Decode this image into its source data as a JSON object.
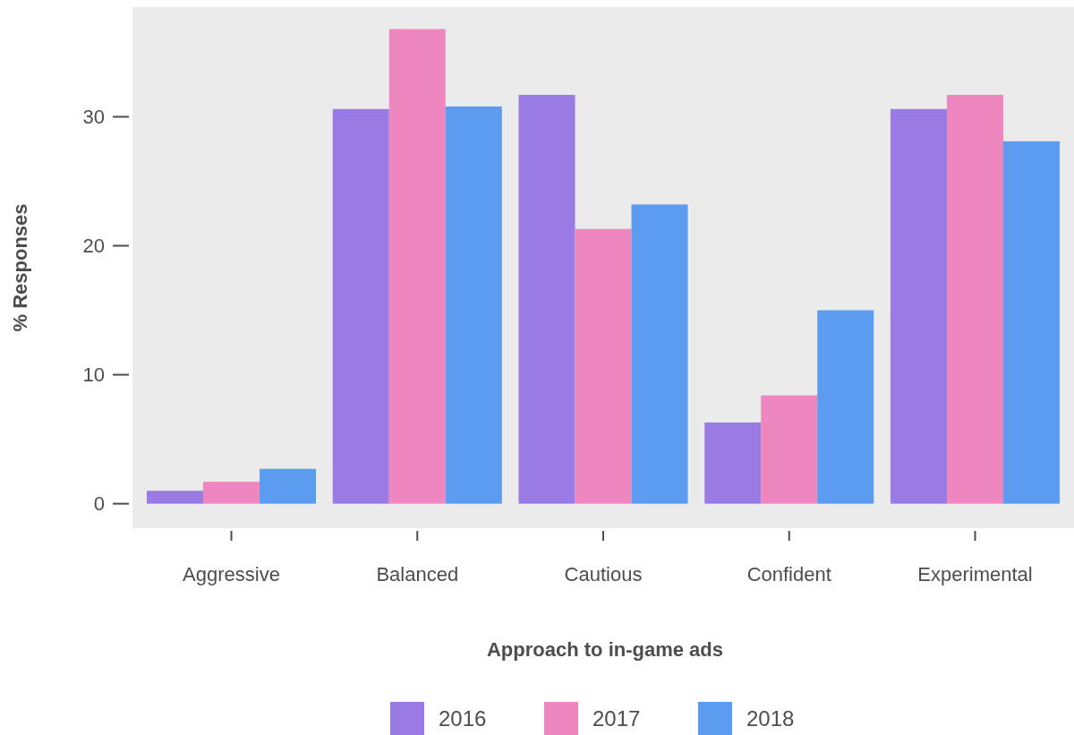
{
  "chart_data": {
    "type": "bar",
    "xlabel": "Approach to in-game ads",
    "ylabel": "% Responses",
    "categories": [
      "Aggressive",
      "Balanced",
      "Cautious",
      "Confident",
      "Experimental"
    ],
    "series": [
      {
        "name": "2016",
        "color": "#9a7be3",
        "values": [
          1.0,
          30.6,
          31.7,
          6.3,
          30.6
        ]
      },
      {
        "name": "2017",
        "color": "#ee86c0",
        "values": [
          1.7,
          36.8,
          21.3,
          8.4,
          31.7
        ]
      },
      {
        "name": "2018",
        "color": "#5b9bf0",
        "values": [
          2.7,
          30.8,
          23.2,
          15.0,
          28.1
        ]
      }
    ],
    "ylim": [
      -1.9,
      38.5
    ],
    "yticks": [
      0,
      10,
      20,
      30
    ],
    "grid": false,
    "legend": "bottom"
  }
}
